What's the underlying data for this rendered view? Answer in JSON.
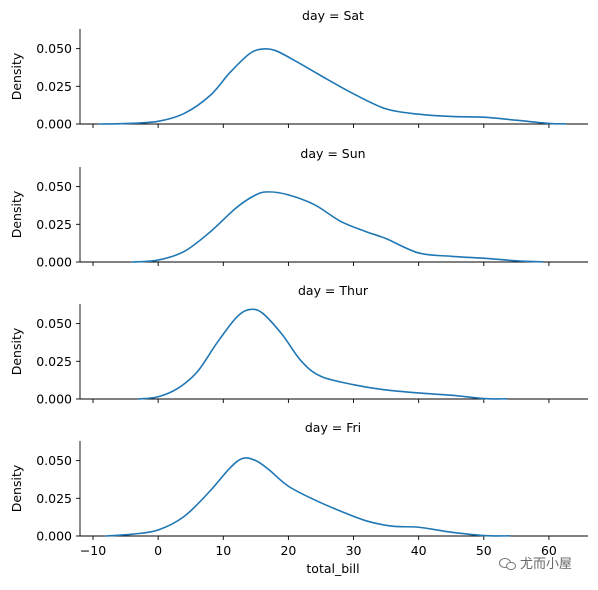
{
  "chart_data": {
    "type": "line",
    "xlabel": "total_bill",
    "ylabel": "Density",
    "xlim": [
      -12,
      66
    ],
    "ylim": [
      0,
      0.063
    ],
    "xticks": [
      -10,
      0,
      10,
      20,
      30,
      40,
      50,
      60
    ],
    "xtick_labels": [
      "−10",
      "0",
      "10",
      "20",
      "30",
      "40",
      "50",
      "60"
    ],
    "yticks": [
      0.0,
      0.025,
      0.05
    ],
    "ytick_labels": [
      "0.000",
      "0.025",
      "0.050"
    ],
    "grid": false,
    "color": "#1f77b4",
    "facets": [
      {
        "title": "day = Sat",
        "series": [
          {
            "x": [
              -9,
              -5,
              0,
              4,
              8,
              11,
              14,
              16,
              18,
              21,
              25,
              30,
              35,
              40,
              45,
              50,
              55,
              60,
              62.5
            ],
            "y": [
              0.0,
              0.0003,
              0.0018,
              0.007,
              0.019,
              0.034,
              0.0465,
              0.0497,
              0.0487,
              0.042,
              0.032,
              0.02,
              0.01,
              0.0065,
              0.005,
              0.0045,
              0.0025,
              0.0004,
              0.0001
            ]
          }
        ]
      },
      {
        "title": "day = Sun",
        "series": [
          {
            "x": [
              -4,
              0,
              4,
              8,
              12,
              15,
              17,
              20,
              24,
              28,
              32,
              35,
              40,
              45,
              50,
              55,
              59
            ],
            "y": [
              0.0,
              0.0013,
              0.007,
              0.02,
              0.036,
              0.0445,
              0.0465,
              0.0445,
              0.038,
              0.027,
              0.02,
              0.0155,
              0.006,
              0.0038,
              0.0025,
              0.0008,
              0.0001
            ]
          }
        ]
      },
      {
        "title": "day = Thur",
        "series": [
          {
            "x": [
              -3,
              0,
              3,
              6,
              9,
              12,
              14,
              16,
              19,
              22,
              25,
              30,
              35,
              40,
              45,
              50,
              53.5
            ],
            "y": [
              0.0,
              0.0015,
              0.007,
              0.018,
              0.037,
              0.054,
              0.0593,
              0.057,
              0.043,
              0.025,
              0.015,
              0.0095,
              0.006,
              0.004,
              0.0025,
              0.0003,
              0.0001
            ]
          }
        ]
      },
      {
        "title": "day = Fri",
        "series": [
          {
            "x": [
              -8,
              -4,
              0,
              4,
              8,
              11,
              13,
              15,
              17,
              20,
              24,
              28,
              32,
              36,
              40,
              45,
              50,
              54
            ],
            "y": [
              0.0,
              0.0012,
              0.004,
              0.013,
              0.03,
              0.045,
              0.0515,
              0.05,
              0.044,
              0.033,
              0.024,
              0.0165,
              0.01,
              0.0065,
              0.0058,
              0.0025,
              0.0003,
              0.0001
            ]
          }
        ]
      }
    ]
  },
  "watermark": "尤而小屋"
}
